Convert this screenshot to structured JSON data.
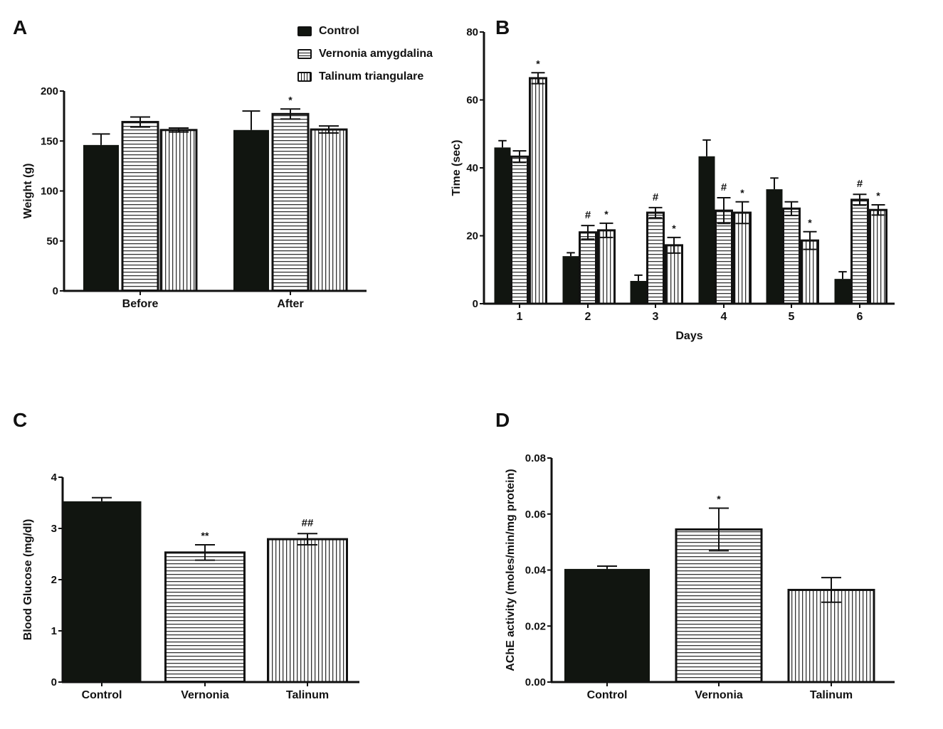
{
  "legend": {
    "items": [
      "Control",
      "Vernonia amygdalina",
      "Talinum triangulare"
    ]
  },
  "colors": {
    "control": "#111510",
    "outline": "#111111",
    "background": "#ffffff"
  },
  "chart_data": [
    {
      "panel": "A",
      "type": "bar",
      "title": "",
      "xlabel": "",
      "ylabel": "Weight (g)",
      "ylim": [
        0,
        200
      ],
      "yticks": [
        "0",
        "50",
        "100",
        "150",
        "200"
      ],
      "categories": [
        "Before",
        "After"
      ],
      "series": [
        {
          "name": "Control",
          "values": [
            146,
            161
          ],
          "err": [
            11,
            19
          ],
          "annot": [
            "",
            ""
          ]
        },
        {
          "name": "Vernonia amygdalina",
          "values": [
            169,
            177
          ],
          "err": [
            5,
            5
          ],
          "annot": [
            "",
            "*"
          ]
        },
        {
          "name": "Talinum triangulare",
          "values": [
            161,
            161.5
          ],
          "err": [
            2,
            3.5
          ],
          "annot": [
            "",
            ""
          ]
        }
      ]
    },
    {
      "panel": "B",
      "type": "bar",
      "title": "",
      "xlabel": "Days",
      "ylabel": "Time (sec)",
      "ylim": [
        0,
        80
      ],
      "yticks": [
        "0",
        "20",
        "40",
        "60",
        "80"
      ],
      "categories": [
        "1",
        "2",
        "3",
        "4",
        "5",
        "6"
      ],
      "series": [
        {
          "name": "Control",
          "values": [
            46,
            14,
            6.7,
            43.4,
            33.7,
            7.3
          ],
          "err": [
            2,
            1,
            1.7,
            4.8,
            3.3,
            2.1
          ],
          "annot": [
            "",
            "",
            "",
            "",
            "",
            ""
          ]
        },
        {
          "name": "Vernonia amygdalina",
          "values": [
            43.3,
            21,
            26.8,
            27.4,
            28,
            30.6
          ],
          "err": [
            1.7,
            2,
            1.5,
            3.8,
            2,
            1.6
          ],
          "annot": [
            "",
            "#",
            "#",
            "#",
            "",
            "#"
          ]
        },
        {
          "name": "Talinum triangulare",
          "values": [
            66.4,
            21.6,
            17.2,
            26.8,
            18.6,
            27.6
          ],
          "err": [
            1.6,
            2.1,
            2.3,
            3.2,
            2.6,
            1.5
          ],
          "annot": [
            "*",
            "*",
            "*",
            "*",
            "*",
            "*"
          ]
        }
      ]
    },
    {
      "panel": "C",
      "type": "bar",
      "title": "",
      "xlabel": "",
      "ylabel": "Blood Glucose (mg/dl)",
      "ylim": [
        0,
        4
      ],
      "yticks": [
        "0",
        "1",
        "2",
        "3",
        "4"
      ],
      "categories": [
        "Control",
        "Vernonia",
        "Talinum"
      ],
      "values": [
        3.53,
        2.53,
        2.79
      ],
      "err": [
        0.07,
        0.15,
        0.11
      ],
      "annot": [
        "",
        "**",
        "##"
      ]
    },
    {
      "panel": "D",
      "type": "bar",
      "title": "",
      "xlabel": "",
      "ylabel": "AChE activity (moles/min/mg protein)",
      "ylim": [
        0,
        0.08
      ],
      "yticks": [
        "0.00",
        "0.02",
        "0.04",
        "0.06",
        "0.08"
      ],
      "categories": [
        "Control",
        "Vernonia",
        "Talinum"
      ],
      "values": [
        0.0404,
        0.0545,
        0.0329
      ],
      "err": [
        0.001,
        0.0076,
        0.0044
      ],
      "annot": [
        "",
        "*",
        ""
      ]
    }
  ]
}
